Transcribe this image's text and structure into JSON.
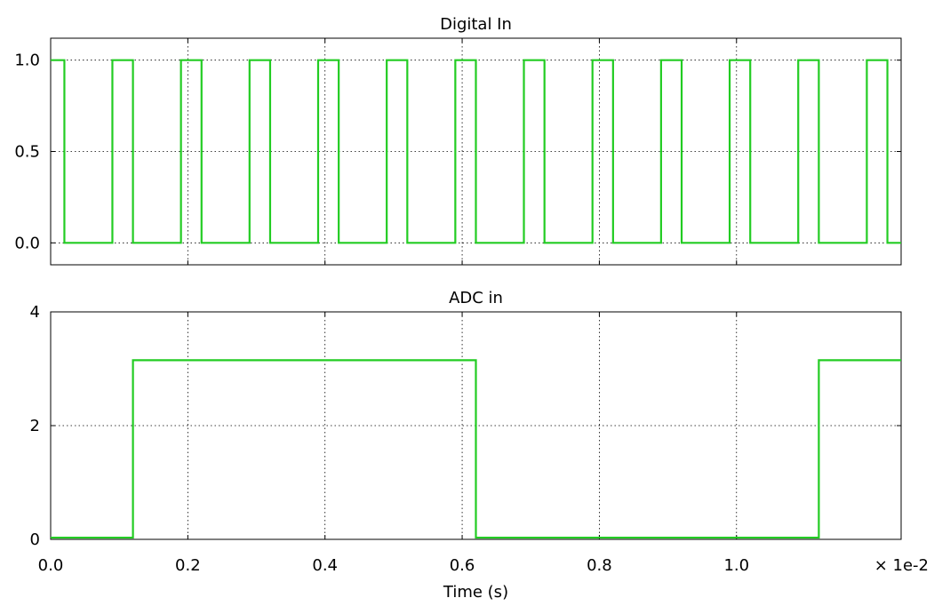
{
  "chart_data": [
    {
      "type": "line",
      "title": "Digital In",
      "xlabel": "",
      "ylabel": "",
      "xlim": [
        0,
        0.0124
      ],
      "ylim": [
        -0.12,
        1.12
      ],
      "yticks": [
        0.0,
        0.5,
        1.0
      ],
      "ytick_labels": [
        "0.0",
        "0.5",
        "1.0"
      ],
      "xticks": [
        0,
        0.002,
        0.004,
        0.006,
        0.008,
        0.01
      ],
      "grid": true,
      "color": "#22cc22",
      "series": [
        {
          "step": true,
          "x": [
            0,
            0.0002,
            0.0009,
            0.0012,
            0.0019,
            0.0022,
            0.0029,
            0.0032,
            0.0039,
            0.0042,
            0.0049,
            0.0052,
            0.0059,
            0.0062,
            0.0069,
            0.0072,
            0.0079,
            0.0082,
            0.0089,
            0.0092,
            0.0099,
            0.0102,
            0.0109,
            0.0112,
            0.0119,
            0.0122,
            0.0124
          ],
          "y": [
            1,
            0,
            1,
            0,
            1,
            0,
            1,
            0,
            1,
            0,
            1,
            0,
            1,
            0,
            1,
            0,
            1,
            0,
            1,
            0,
            1,
            0,
            1,
            0,
            1,
            0,
            0
          ]
        }
      ]
    },
    {
      "type": "line",
      "title": "ADC in",
      "xlabel": "Time (s)",
      "ylabel": "",
      "xlim": [
        0,
        0.0124
      ],
      "ylim": [
        0,
        4
      ],
      "yticks": [
        0,
        2,
        4
      ],
      "ytick_labels": [
        "0",
        "2",
        "4"
      ],
      "xticks": [
        0,
        0.002,
        0.004,
        0.006,
        0.008,
        0.01
      ],
      "xtick_labels": [
        "0.0",
        "0.2",
        "0.4",
        "0.6",
        "0.8",
        "1.0"
      ],
      "x_multiplier_label": "× 1e-2",
      "grid": true,
      "color": "#22cc22",
      "series": [
        {
          "step": true,
          "x": [
            0,
            0.0012,
            0.0062,
            0.0112,
            0.0124
          ],
          "y": [
            0.03,
            3.15,
            0.03,
            3.15,
            3.15
          ]
        }
      ]
    }
  ]
}
